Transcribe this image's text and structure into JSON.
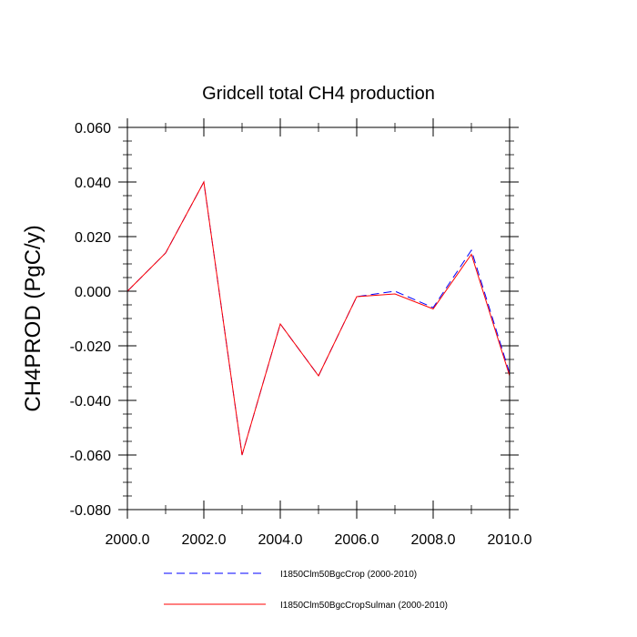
{
  "chart_data": {
    "type": "line",
    "title": "Gridcell total CH4 production",
    "xlabel": "",
    "ylabel": "CH4PROD  (PgC/y)",
    "xlim": [
      2000,
      2010
    ],
    "ylim": [
      -0.08,
      0.06
    ],
    "xticks": [
      2000,
      2002,
      2004,
      2006,
      2008,
      2010
    ],
    "xtick_labels": [
      "2000.0",
      "2002.0",
      "2004.0",
      "2006.0",
      "2008.0",
      "2010.0"
    ],
    "yticks": [
      0.06,
      0.04,
      0.02,
      0.0,
      -0.02,
      -0.04,
      -0.06,
      -0.08
    ],
    "ytick_labels": [
      "0.060",
      "0.040",
      "0.020",
      "0.000",
      "-0.020",
      "-0.040",
      "-0.060",
      "-0.080"
    ],
    "grid": false,
    "legend_position": "bottom",
    "x": [
      2000,
      2001,
      2002,
      2003,
      2004,
      2005,
      2006,
      2007,
      2008,
      2009,
      2010
    ],
    "series": [
      {
        "name": "I1850Clm50BgcCrop (2000-2010)",
        "color": "#0000ff",
        "style": "dashed",
        "values": [
          0.0,
          0.014,
          0.04,
          -0.06,
          -0.012,
          -0.031,
          -0.002,
          0.0,
          -0.006,
          0.015,
          -0.03
        ]
      },
      {
        "name": "I1850Clm50BgcCropSulman (2000-2010)",
        "color": "#ff0000",
        "style": "solid",
        "values": [
          0.0,
          0.014,
          0.04,
          -0.06,
          -0.012,
          -0.031,
          -0.002,
          -0.001,
          -0.0065,
          0.0135,
          -0.031
        ]
      }
    ]
  }
}
